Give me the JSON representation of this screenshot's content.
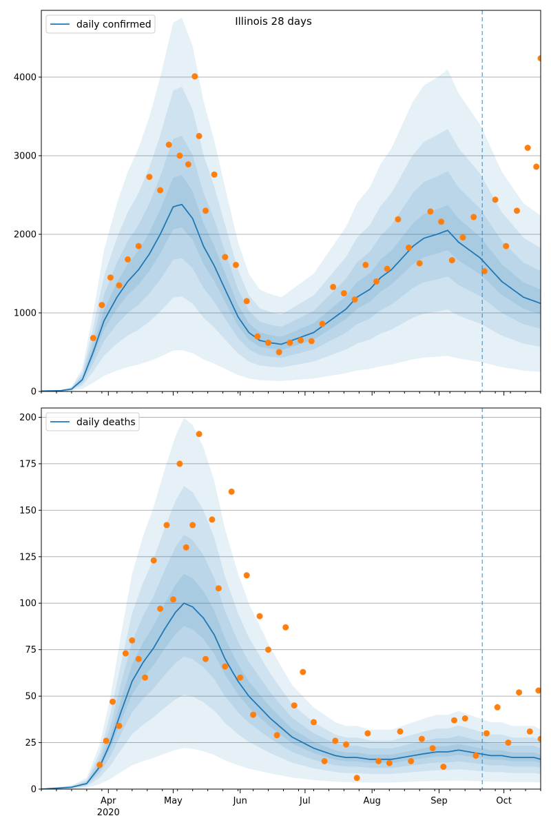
{
  "chart_data": [
    {
      "type": "line",
      "title": "Illinois 28 days",
      "ylim": [
        0,
        4850
      ],
      "yticks": [
        0,
        1000,
        2000,
        3000,
        4000
      ],
      "grid": true,
      "legend": {
        "placement": "top-left",
        "entries": [
          "daily confirmed"
        ]
      },
      "series": [
        {
          "name": "daily confirmed",
          "kind": "line",
          "x": [
            "2020-03-01",
            "2020-03-10",
            "2020-03-15",
            "2020-03-20",
            "2020-03-25",
            "2020-03-30",
            "2020-04-05",
            "2020-04-10",
            "2020-04-15",
            "2020-04-20",
            "2020-04-25",
            "2020-05-01",
            "2020-05-05",
            "2020-05-10",
            "2020-05-15",
            "2020-05-20",
            "2020-05-25",
            "2020-05-31",
            "2020-06-05",
            "2020-06-10",
            "2020-06-15",
            "2020-06-20",
            "2020-06-25",
            "2020-06-30",
            "2020-07-05",
            "2020-07-10",
            "2020-07-15",
            "2020-07-20",
            "2020-07-25",
            "2020-07-31",
            "2020-08-05",
            "2020-08-10",
            "2020-08-15",
            "2020-08-20",
            "2020-08-25",
            "2020-08-31",
            "2020-09-05",
            "2020-09-10",
            "2020-09-15",
            "2020-09-20",
            "2020-09-25",
            "2020-09-30",
            "2020-10-05",
            "2020-10-10",
            "2020-10-15",
            "2020-10-18"
          ],
          "y": [
            5,
            10,
            30,
            150,
            500,
            900,
            1200,
            1400,
            1550,
            1750,
            2000,
            2350,
            2380,
            2200,
            1850,
            1600,
            1300,
            950,
            750,
            650,
            620,
            600,
            650,
            700,
            750,
            850,
            950,
            1050,
            1200,
            1300,
            1450,
            1550,
            1700,
            1850,
            1950,
            2000,
            2050,
            1900,
            1800,
            1700,
            1550,
            1400,
            1300,
            1200,
            1150,
            1120
          ]
        },
        {
          "name": "",
          "kind": "scatter",
          "color": "#ff7f0e",
          "x": [
            "2020-03-25",
            "2020-03-29",
            "2020-04-02",
            "2020-04-06",
            "2020-04-10",
            "2020-04-15",
            "2020-04-20",
            "2020-04-25",
            "2020-04-29",
            "2020-05-04",
            "2020-05-08",
            "2020-05-11",
            "2020-05-13",
            "2020-05-16",
            "2020-05-20",
            "2020-05-25",
            "2020-05-30",
            "2020-06-04",
            "2020-06-09",
            "2020-06-14",
            "2020-06-19",
            "2020-06-24",
            "2020-06-29",
            "2020-07-04",
            "2020-07-09",
            "2020-07-14",
            "2020-07-19",
            "2020-07-24",
            "2020-07-29",
            "2020-08-03",
            "2020-08-08",
            "2020-08-13",
            "2020-08-18",
            "2020-08-23",
            "2020-08-28",
            "2020-09-02",
            "2020-09-07",
            "2020-09-12",
            "2020-09-17",
            "2020-09-22",
            "2020-09-27",
            "2020-10-02",
            "2020-10-07",
            "2020-10-12",
            "2020-10-16",
            "2020-10-18"
          ],
          "y": [
            680,
            1100,
            1450,
            1350,
            1680,
            1850,
            2730,
            2560,
            3140,
            3000,
            2890,
            4010,
            3250,
            2300,
            2760,
            1710,
            1610,
            1150,
            700,
            620,
            500,
            620,
            650,
            640,
            860,
            1330,
            1250,
            1170,
            1610,
            1400,
            1560,
            2190,
            1830,
            1630,
            2290,
            2160,
            1670,
            1960,
            2220,
            1530,
            2440,
            1850,
            2300,
            3100,
            2860,
            4240
          ]
        }
      ]
    },
    {
      "type": "line",
      "title": "",
      "ylim": [
        0,
        205
      ],
      "yticks": [
        0,
        25,
        50,
        75,
        100,
        125,
        150,
        175,
        200
      ],
      "grid": true,
      "legend": {
        "placement": "top-left",
        "entries": [
          "daily deaths"
        ]
      },
      "xlabel_ticks": [
        "Apr\n2020",
        "May",
        "Jun",
        "Jul",
        "Aug",
        "Sep",
        "Oct"
      ],
      "series": [
        {
          "name": "daily deaths",
          "kind": "line",
          "x": [
            "2020-03-01",
            "2020-03-15",
            "2020-03-22",
            "2020-03-28",
            "2020-04-02",
            "2020-04-07",
            "2020-04-12",
            "2020-04-17",
            "2020-04-22",
            "2020-04-27",
            "2020-05-02",
            "2020-05-06",
            "2020-05-10",
            "2020-05-15",
            "2020-05-20",
            "2020-05-25",
            "2020-05-31",
            "2020-06-05",
            "2020-06-10",
            "2020-06-15",
            "2020-06-20",
            "2020-06-25",
            "2020-06-30",
            "2020-07-05",
            "2020-07-10",
            "2020-07-15",
            "2020-07-20",
            "2020-07-25",
            "2020-07-31",
            "2020-08-05",
            "2020-08-10",
            "2020-08-15",
            "2020-08-20",
            "2020-08-25",
            "2020-08-31",
            "2020-09-05",
            "2020-09-10",
            "2020-09-15",
            "2020-09-20",
            "2020-09-25",
            "2020-09-30",
            "2020-10-05",
            "2020-10-10",
            "2020-10-15",
            "2020-10-18"
          ],
          "y": [
            0,
            1,
            3,
            12,
            25,
            42,
            58,
            68,
            76,
            86,
            95,
            100,
            98,
            92,
            83,
            70,
            58,
            50,
            44,
            38,
            33,
            28,
            25,
            22,
            20,
            18,
            17,
            17,
            16,
            16,
            16,
            17,
            18,
            19,
            20,
            20,
            21,
            20,
            19,
            18,
            18,
            17,
            17,
            17,
            16
          ]
        },
        {
          "name": "",
          "kind": "scatter",
          "color": "#ff7f0e",
          "x": [
            "2020-03-28",
            "2020-03-31",
            "2020-04-03",
            "2020-04-06",
            "2020-04-09",
            "2020-04-12",
            "2020-04-15",
            "2020-04-18",
            "2020-04-22",
            "2020-04-25",
            "2020-04-28",
            "2020-05-01",
            "2020-05-04",
            "2020-05-07",
            "2020-05-10",
            "2020-05-13",
            "2020-05-16",
            "2020-05-19",
            "2020-05-22",
            "2020-05-25",
            "2020-05-28",
            "2020-06-01",
            "2020-06-04",
            "2020-06-07",
            "2020-06-10",
            "2020-06-14",
            "2020-06-18",
            "2020-06-22",
            "2020-06-26",
            "2020-06-30",
            "2020-07-05",
            "2020-07-10",
            "2020-07-15",
            "2020-07-20",
            "2020-07-25",
            "2020-07-30",
            "2020-08-04",
            "2020-08-09",
            "2020-08-14",
            "2020-08-19",
            "2020-08-24",
            "2020-08-29",
            "2020-09-03",
            "2020-09-08",
            "2020-09-13",
            "2020-09-18",
            "2020-09-23",
            "2020-09-28",
            "2020-10-03",
            "2020-10-08",
            "2020-10-13",
            "2020-10-17",
            "2020-10-18"
          ],
          "y": [
            13,
            26,
            47,
            34,
            73,
            80,
            70,
            60,
            123,
            97,
            142,
            102,
            175,
            130,
            142,
            191,
            70,
            145,
            108,
            66,
            160,
            60,
            115,
            40,
            93,
            75,
            29,
            87,
            45,
            63,
            36,
            15,
            26,
            24,
            6,
            30,
            15,
            14,
            31,
            15,
            27,
            22,
            12,
            37,
            38,
            18,
            30,
            44,
            25,
            52,
            31,
            53,
            27
          ]
        }
      ]
    }
  ],
  "vline_date": "2020-09-21",
  "colors": {
    "line": "#1f77b4",
    "scatter": "#ff7f0e",
    "band": "#1f77b4",
    "grid": "#b0b0b0"
  },
  "xticks": [
    {
      "date": "2020-04-01",
      "label": "Apr",
      "sublabel": "2020"
    },
    {
      "date": "2020-05-01",
      "label": "May",
      "sublabel": ""
    },
    {
      "date": "2020-06-01",
      "label": "Jun",
      "sublabel": ""
    },
    {
      "date": "2020-07-01",
      "label": "Jul",
      "sublabel": ""
    },
    {
      "date": "2020-08-01",
      "label": "Aug",
      "sublabel": ""
    },
    {
      "date": "2020-09-01",
      "label": "Sep",
      "sublabel": ""
    },
    {
      "date": "2020-10-01",
      "label": "Oct",
      "sublabel": ""
    }
  ],
  "x_range": [
    "2020-03-01",
    "2020-10-18"
  ]
}
